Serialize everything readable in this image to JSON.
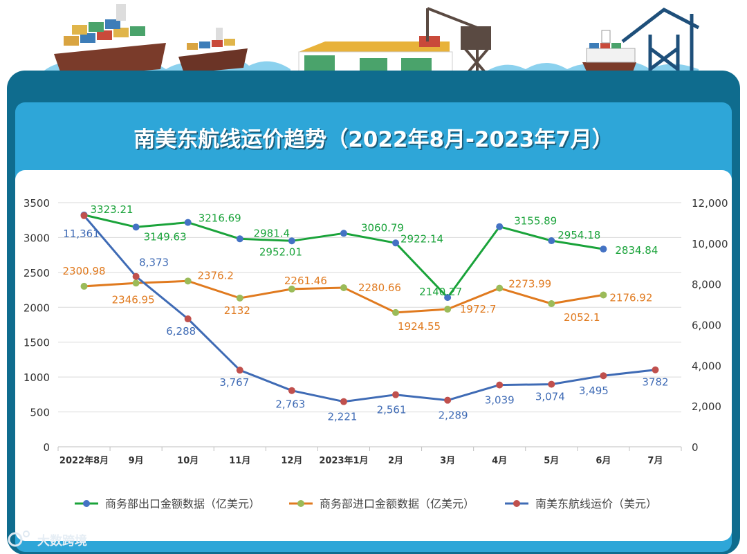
{
  "page": {
    "title": "南美东航线运价趋势（2022年8月-2023年7月）",
    "watermark": "大数跨境"
  },
  "chart_data": {
    "type": "line",
    "title": "南美东航线运价趋势（2022年8月-2023年7月）",
    "categories": [
      "2022年8月",
      "9月",
      "10月",
      "11月",
      "12月",
      "2023年1月",
      "2月",
      "3月",
      "4月",
      "5月",
      "6月",
      "7月"
    ],
    "y_left": {
      "min": 0,
      "max": 3500,
      "step": 500,
      "ticks": [
        "0",
        "500",
        "1000",
        "1500",
        "2000",
        "2500",
        "3000",
        "3500"
      ]
    },
    "y_right": {
      "min": 0,
      "max": 12000,
      "step": 2000,
      "ticks": [
        "0",
        "2,000",
        "4,000",
        "6,000",
        "8,000",
        "10,000",
        "12,000"
      ]
    },
    "series": [
      {
        "name": "商务部出口金额数据（亿美元）",
        "axis": "left",
        "color": "#1aa33a",
        "marker": "#4472c4",
        "values": [
          3323.21,
          3149.63,
          3216.69,
          2981.4,
          2952.01,
          3060.79,
          2922.14,
          2140.27,
          3155.89,
          2954.18,
          2834.84,
          null
        ],
        "labels": [
          "3323.21",
          "3149.63",
          "3216.69",
          "2981.4",
          "2952.01",
          "3060.79",
          "2922.14",
          "2140.27",
          "3155.89",
          "2954.18",
          "2834.84",
          ""
        ]
      },
      {
        "name": "商务部进口金额数据（亿美元）",
        "axis": "left",
        "color": "#e07a1f",
        "marker": "#9bbb59",
        "values": [
          2300.98,
          2346.95,
          2376.2,
          2132,
          2261.46,
          2280.66,
          1924.55,
          1972.7,
          2273.99,
          2052.1,
          2176.92,
          null
        ],
        "labels": [
          "2300.98",
          "2346.95",
          "2376.2",
          "2132",
          "2261.46",
          "2280.66",
          "1924.55",
          "1972.7",
          "2273.99",
          "2052.1",
          "2176.92",
          ""
        ]
      },
      {
        "name": "南美东航线运价（美元）",
        "axis": "right",
        "color": "#3f6bb5",
        "marker": "#c0504d",
        "values": [
          11361,
          8373,
          6288,
          3767,
          2763,
          2221,
          2561,
          2289,
          3039,
          3074,
          3495,
          3782
        ],
        "labels": [
          "11,361",
          "8,373",
          "6,288",
          "3,767",
          "2,763",
          "2,221",
          "2,561",
          "2,289",
          "3,039",
          "3,074",
          "3,495",
          "3782"
        ]
      }
    ],
    "legend_position": "bottom",
    "colors": {
      "frame": "#0f6c8e",
      "panel": "#2ea6d8",
      "title_text": "#ffffff",
      "axis_text": "#333333",
      "grid": "#d9d9d9"
    }
  }
}
